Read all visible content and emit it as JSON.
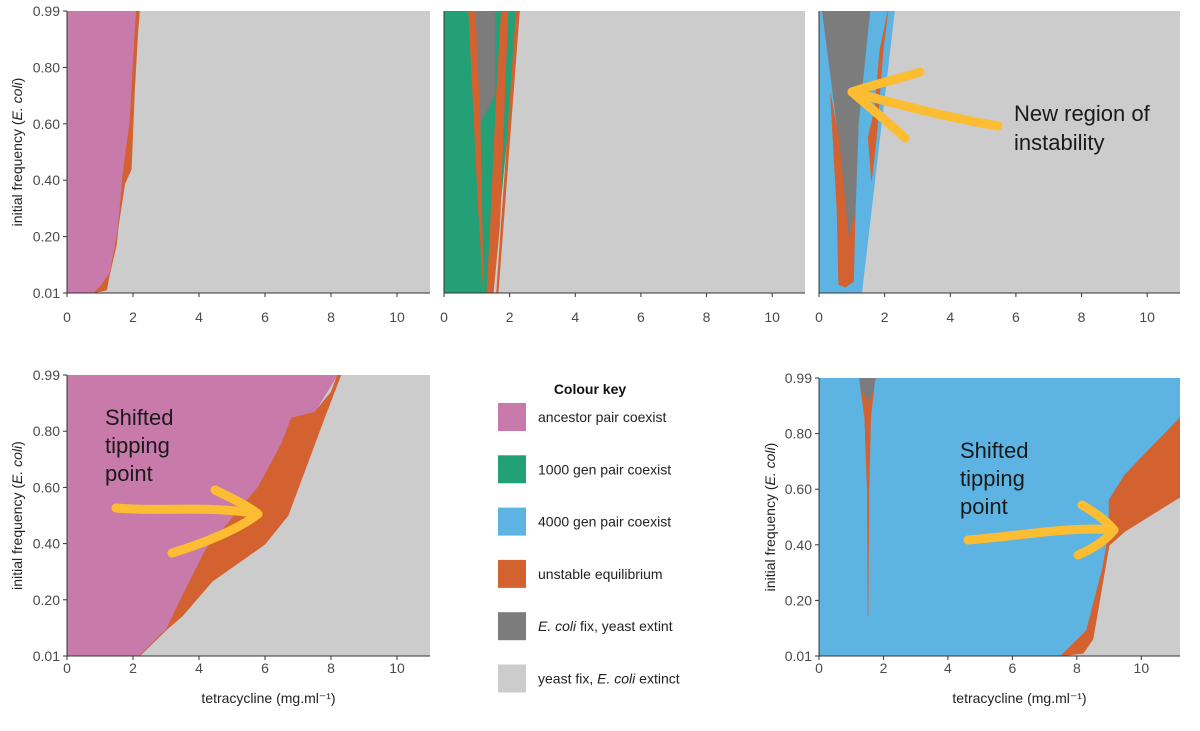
{
  "chart_data": [
    {
      "type": "area",
      "panel": "top-left",
      "xlim": [
        0,
        11
      ],
      "ylim": [
        0.01,
        0.99
      ],
      "xticks": [
        "0",
        "2",
        "4",
        "6",
        "8",
        "10"
      ],
      "yticks": [
        "0.01",
        "0.20",
        "0.40",
        "0.60",
        "0.80",
        "0.99"
      ],
      "ylabel_prefix": "initial frequency (",
      "ylabel_italic": "E. coli",
      "ylabel_suffix": ")",
      "xlabel": "",
      "regions": [
        {
          "key": "yeast_fix",
          "points": [
            [
              0,
              0.01
            ],
            [
              11,
              0.01
            ],
            [
              11,
              0.99
            ],
            [
              0,
              0.99
            ]
          ]
        },
        {
          "key": "ancestor",
          "points": [
            [
              0,
              0.01
            ],
            [
              0.8,
              0.01
            ],
            [
              1.0,
              0.03
            ],
            [
              1.3,
              0.08
            ],
            [
              1.5,
              0.18
            ],
            [
              1.6,
              0.3
            ],
            [
              1.7,
              0.43
            ],
            [
              1.9,
              0.6
            ],
            [
              2.0,
              0.8
            ],
            [
              2.1,
              0.99
            ],
            [
              0,
              0.99
            ]
          ]
        },
        {
          "key": "unstable",
          "points": [
            [
              0.8,
              0.01
            ],
            [
              1.2,
              0.02
            ],
            [
              1.5,
              0.2
            ],
            [
              1.75,
              0.39
            ],
            [
              1.95,
              0.44
            ],
            [
              2.05,
              0.72
            ],
            [
              2.15,
              0.92
            ],
            [
              2.2,
              0.99
            ],
            [
              2.1,
              0.99
            ],
            [
              2.0,
              0.8
            ],
            [
              1.9,
              0.6
            ],
            [
              1.7,
              0.43
            ],
            [
              1.6,
              0.3
            ],
            [
              1.5,
              0.18
            ],
            [
              1.3,
              0.08
            ],
            [
              1.0,
              0.03
            ]
          ]
        }
      ]
    },
    {
      "type": "area",
      "panel": "top-middle",
      "xlim": [
        0,
        11
      ],
      "ylim": [
        0.01,
        0.99
      ],
      "xticks": [
        "0",
        "2",
        "4",
        "6",
        "8",
        "10"
      ],
      "yticks": [],
      "xlabel": "",
      "regions": [
        {
          "key": "yeast_fix",
          "points": [
            [
              0,
              0.01
            ],
            [
              11,
              0.01
            ],
            [
              11,
              0.99
            ],
            [
              0,
              0.99
            ]
          ]
        },
        {
          "key": "gen1000",
          "points": [
            [
              0,
              0.01
            ],
            [
              1.15,
              0.01
            ],
            [
              1.45,
              0.01
            ],
            [
              2.3,
              0.99
            ],
            [
              0,
              0.99
            ]
          ]
        },
        {
          "key": "ecoli_fix",
          "points": [
            [
              0.9,
              0.99
            ],
            [
              1.55,
              0.99
            ],
            [
              1.55,
              0.7
            ],
            [
              1.1,
              0.6
            ]
          ]
        },
        {
          "key": "unstable",
          "points": [
            [
              0.75,
              0.99
            ],
            [
              0.95,
              0.99
            ],
            [
              1.1,
              0.6
            ],
            [
              1.2,
              0.02
            ],
            [
              1.05,
              0.3
            ]
          ]
        },
        {
          "key": "unstable",
          "points": [
            [
              1.3,
              0.01
            ],
            [
              1.5,
              0.01
            ],
            [
              1.7,
              0.25
            ],
            [
              1.85,
              0.7
            ],
            [
              1.95,
              0.99
            ],
            [
              1.75,
              0.99
            ],
            [
              1.6,
              0.7
            ],
            [
              1.4,
              0.2
            ]
          ]
        },
        {
          "key": "unstable",
          "points": [
            [
              1.4,
              0.01
            ],
            [
              1.6,
              0.01
            ],
            [
              2.2,
              0.99
            ],
            [
              2.3,
              0.99
            ],
            [
              1.65,
              0.01
            ]
          ]
        }
      ]
    },
    {
      "type": "area",
      "panel": "top-right",
      "xlim": [
        0,
        11
      ],
      "ylim": [
        0.01,
        0.99
      ],
      "xticks": [
        "0",
        "2",
        "4",
        "6",
        "8",
        "10"
      ],
      "yticks": [],
      "xlabel": "",
      "regions": [
        {
          "key": "yeast_fix",
          "points": [
            [
              0,
              0.01
            ],
            [
              11,
              0.01
            ],
            [
              11,
              0.99
            ],
            [
              0,
              0.99
            ]
          ]
        },
        {
          "key": "gen4000",
          "points": [
            [
              0,
              0.01
            ],
            [
              1.3,
              0.01
            ],
            [
              2.3,
              0.99
            ],
            [
              0,
              0.99
            ]
          ]
        },
        {
          "key": "ecoli_fix",
          "points": [
            [
              0.1,
              0.99
            ],
            [
              1.55,
              0.99
            ],
            [
              1.2,
              0.6
            ],
            [
              1.1,
              0.28
            ],
            [
              0.9,
              0.2
            ],
            [
              0.6,
              0.55
            ]
          ]
        },
        {
          "key": "unstable",
          "points": [
            [
              0.35,
              0.7
            ],
            [
              0.6,
              0.55
            ],
            [
              0.9,
              0.2
            ],
            [
              1.1,
              0.28
            ],
            [
              1.05,
              0.05
            ],
            [
              0.8,
              0.03
            ],
            [
              0.6,
              0.04
            ],
            [
              0.55,
              0.3
            ]
          ]
        },
        {
          "key": "unstable",
          "points": [
            [
              1.5,
              0.55
            ],
            [
              1.7,
              0.65
            ],
            [
              1.85,
              0.85
            ],
            [
              2.1,
              0.99
            ],
            [
              1.95,
              0.85
            ],
            [
              1.75,
              0.55
            ],
            [
              1.6,
              0.4
            ]
          ]
        }
      ]
    },
    {
      "type": "area",
      "panel": "bottom-left",
      "xlim": [
        0,
        11
      ],
      "ylim": [
        0.01,
        0.99
      ],
      "xticks": [
        "0",
        "2",
        "4",
        "6",
        "8",
        "10"
      ],
      "yticks": [
        "0.01",
        "0.20",
        "0.40",
        "0.60",
        "0.80",
        "0.99"
      ],
      "ylabel_prefix": "initial frequency (",
      "ylabel_italic": "E. coli",
      "ylabel_suffix": ")",
      "xlabel": "tetracycline (mg.ml⁻¹)",
      "regions": [
        {
          "key": "yeast_fix",
          "points": [
            [
              0,
              0.01
            ],
            [
              11,
              0.01
            ],
            [
              11,
              0.99
            ],
            [
              0,
              0.99
            ]
          ]
        },
        {
          "key": "ancestor",
          "points": [
            [
              0,
              0.01
            ],
            [
              2.2,
              0.01
            ],
            [
              3,
              0.1
            ],
            [
              3.5,
              0.22
            ],
            [
              4.2,
              0.38
            ],
            [
              5,
              0.49
            ],
            [
              5.8,
              0.6
            ],
            [
              6.8,
              0.75
            ],
            [
              7.5,
              0.86
            ],
            [
              8.2,
              0.99
            ],
            [
              0,
              0.99
            ]
          ]
        },
        {
          "key": "unstable",
          "points": [
            [
              2.2,
              0.01
            ],
            [
              3,
              0.1
            ],
            [
              3.5,
              0.22
            ],
            [
              4.2,
              0.38
            ],
            [
              5,
              0.49
            ],
            [
              5.8,
              0.6
            ],
            [
              6.5,
              0.75
            ],
            [
              6.8,
              0.84
            ],
            [
              7.5,
              0.86
            ],
            [
              8.0,
              0.93
            ],
            [
              8.2,
              0.99
            ],
            [
              8.3,
              0.99
            ],
            [
              7.8,
              0.84
            ],
            [
              6.7,
              0.5
            ],
            [
              6.0,
              0.4
            ],
            [
              4.4,
              0.27
            ],
            [
              3.5,
              0.15
            ],
            [
              2.8,
              0.08
            ]
          ]
        }
      ]
    },
    {
      "type": "area",
      "panel": "bottom-right",
      "xlim": [
        0,
        11.2
      ],
      "ylim": [
        0.01,
        0.99
      ],
      "xticks": [
        "0",
        "2",
        "4",
        "6",
        "8",
        "10"
      ],
      "yticks": [
        "0.01",
        "0.20",
        "0.40",
        "0.60",
        "0.80",
        "0.99"
      ],
      "ylabel_prefix": "initial frequency (",
      "ylabel_italic": "E. coli",
      "ylabel_suffix": ")",
      "xlabel": "tetracycline (mg.ml⁻¹)",
      "regions": [
        {
          "key": "yeast_fix",
          "points": [
            [
              0,
              0.01
            ],
            [
              11.2,
              0.01
            ],
            [
              11.2,
              0.99
            ],
            [
              0,
              0.99
            ]
          ]
        },
        {
          "key": "gen4000",
          "points": [
            [
              0,
              0.01
            ],
            [
              7.5,
              0.01
            ],
            [
              8.3,
              0.1
            ],
            [
              8.8,
              0.32
            ],
            [
              9.0,
              0.45
            ],
            [
              9.0,
              0.56
            ],
            [
              9.5,
              0.65
            ],
            [
              11.2,
              0.85
            ],
            [
              11.2,
              0.99
            ],
            [
              0,
              0.99
            ]
          ]
        },
        {
          "key": "ecoli_fix",
          "points": [
            [
              1.25,
              0.99
            ],
            [
              1.75,
              0.99
            ],
            [
              1.55,
              0.85
            ],
            [
              1.5,
              0.6
            ],
            [
              1.42,
              0.85
            ]
          ]
        },
        {
          "key": "unstable",
          "points": [
            [
              1.3,
              0.95
            ],
            [
              1.42,
              0.85
            ],
            [
              1.5,
              0.6
            ],
            [
              1.52,
              0.15
            ],
            [
              1.55,
              0.6
            ],
            [
              1.6,
              0.85
            ],
            [
              1.7,
              0.95
            ],
            [
              1.55,
              0.9
            ]
          ]
        },
        {
          "key": "unstable",
          "points": [
            [
              7.5,
              0.01
            ],
            [
              8.3,
              0.1
            ],
            [
              8.8,
              0.32
            ],
            [
              9.0,
              0.45
            ],
            [
              9.0,
              0.56
            ],
            [
              9.5,
              0.65
            ],
            [
              11.2,
              0.85
            ],
            [
              11.2,
              0.57
            ],
            [
              9.5,
              0.45
            ],
            [
              9.0,
              0.4
            ],
            [
              8.5,
              0.07
            ],
            [
              8.2,
              0.02
            ]
          ]
        }
      ]
    }
  ],
  "colors": {
    "ancestor": "#c87bab",
    "gen1000": "#24a076",
    "gen4000": "#5db3e2",
    "unstable": "#d36230",
    "ecoli_fix": "#7c7c7c",
    "yeast_fix": "#cccccc",
    "arrow": "#fcbd32",
    "background": "#ffffff"
  },
  "legend": {
    "title": "Colour key",
    "items": [
      {
        "key": "ancestor",
        "label_prefix": "",
        "label_italic": "",
        "label": "ancestor pair coexist"
      },
      {
        "key": "gen1000",
        "label_prefix": "",
        "label_italic": "",
        "label": "1000 gen pair coexist"
      },
      {
        "key": "gen4000",
        "label_prefix": "",
        "label_italic": "",
        "label": "4000 gen pair coexist"
      },
      {
        "key": "unstable",
        "label_prefix": "",
        "label_italic": "",
        "label": "unstable equilibrium"
      },
      {
        "key": "ecoli_fix",
        "label_prefix": "",
        "label_italic": "E. coli",
        "label": " fix, yeast extint"
      },
      {
        "key": "yeast_fix",
        "label_prefix": "yeast fix, ",
        "label_italic": "E. coli",
        "label": " extinct"
      }
    ]
  },
  "annotations": {
    "instability": [
      "New region of",
      "instability"
    ],
    "shifted_left": [
      "Shifted",
      "tipping",
      "point"
    ],
    "shifted_right": [
      "Shifted",
      "tipping",
      "point"
    ]
  }
}
